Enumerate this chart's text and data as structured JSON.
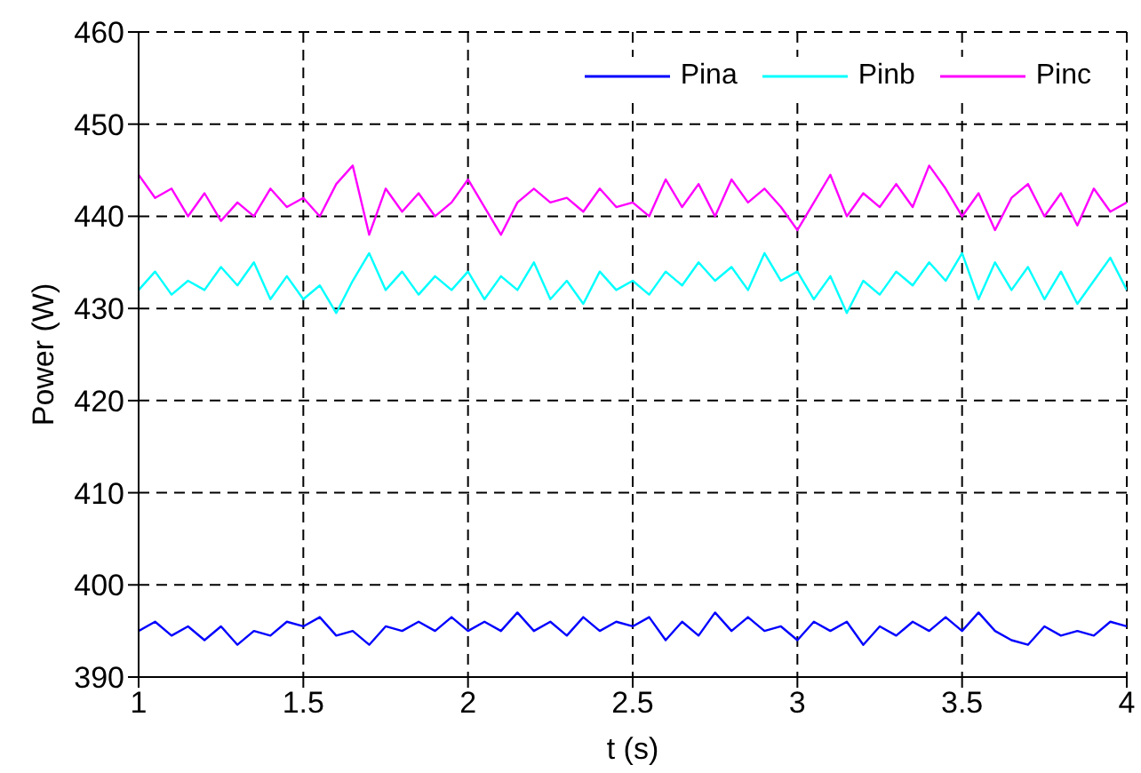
{
  "chart_data": {
    "type": "line",
    "xlabel": "t (s)",
    "ylabel": "Power (W)",
    "xlim": [
      1,
      4
    ],
    "ylim": [
      390,
      460
    ],
    "xticks": [
      1,
      1.5,
      2,
      2.5,
      3,
      3.5,
      4
    ],
    "yticks": [
      390,
      400,
      410,
      420,
      430,
      440,
      450,
      460
    ],
    "grid": true,
    "legend": "top right",
    "line_style": "solid",
    "marker": "none",
    "x": [
      1,
      1.05,
      1.1,
      1.15,
      1.2,
      1.25,
      1.3,
      1.35,
      1.4,
      1.45,
      1.5,
      1.55,
      1.6,
      1.65,
      1.7,
      1.75,
      1.8,
      1.85,
      1.9,
      1.95,
      2,
      2.05,
      2.1,
      2.15,
      2.2,
      2.25,
      2.3,
      2.35,
      2.4,
      2.45,
      2.5,
      2.55,
      2.6,
      2.65,
      2.7,
      2.75,
      2.8,
      2.85,
      2.9,
      2.95,
      3,
      3.05,
      3.1,
      3.15,
      3.2,
      3.25,
      3.3,
      3.35,
      3.4,
      3.45,
      3.5,
      3.55,
      3.6,
      3.65,
      3.7,
      3.75,
      3.8,
      3.85,
      3.9,
      3.95,
      4
    ],
    "series": [
      {
        "name": "Pina",
        "color": "#0000ff",
        "values": [
          395,
          396,
          394.5,
          395.5,
          394,
          395.5,
          393.5,
          395,
          394.5,
          396,
          395.5,
          396.5,
          394.5,
          395,
          393.5,
          395.5,
          395,
          396,
          395,
          396.5,
          395,
          396,
          395,
          397,
          395,
          396,
          394.5,
          396.5,
          395,
          396,
          395.5,
          396.5,
          394,
          396,
          394.5,
          397,
          395,
          396.5,
          395,
          395.5,
          394,
          396,
          395,
          396,
          393.5,
          395.5,
          394.5,
          396,
          395,
          396.5,
          395,
          397,
          395,
          394,
          393.5,
          395.5,
          394.5,
          395,
          394.5,
          396,
          395.5
        ]
      },
      {
        "name": "Pinb",
        "color": "#00ffff",
        "values": [
          432,
          434,
          431.5,
          433,
          432,
          434.5,
          432.5,
          435,
          431,
          433.5,
          431,
          432.5,
          429.5,
          433,
          436,
          432,
          434,
          431.5,
          433.5,
          432,
          434,
          431,
          433.5,
          432,
          435,
          431,
          433,
          430.5,
          434,
          432,
          433,
          431.5,
          434,
          432.5,
          435,
          433,
          434.5,
          432,
          436,
          433,
          434,
          431,
          433.5,
          429.5,
          433,
          431.5,
          434,
          432.5,
          435,
          433,
          436,
          431,
          435,
          432,
          434.5,
          431,
          434,
          430.5,
          433,
          435.5,
          432
        ]
      },
      {
        "name": "Pinc",
        "color": "#ff00ff",
        "values": [
          444.5,
          442,
          443,
          440,
          442.5,
          439.5,
          441.5,
          440,
          443,
          441,
          442,
          440,
          443.5,
          445.5,
          438,
          443,
          440.5,
          442.5,
          440,
          441.5,
          444,
          441,
          438,
          441.5,
          443,
          441.5,
          442,
          440.5,
          443,
          441,
          441.5,
          440,
          444,
          441,
          443.5,
          440,
          444,
          441.5,
          443,
          441,
          438.5,
          441.5,
          444.5,
          440,
          442.5,
          441,
          443.5,
          441,
          445.5,
          443,
          440,
          442.5,
          438.5,
          442,
          443.5,
          440,
          442.5,
          439,
          443,
          440.5,
          441.5
        ]
      }
    ]
  }
}
